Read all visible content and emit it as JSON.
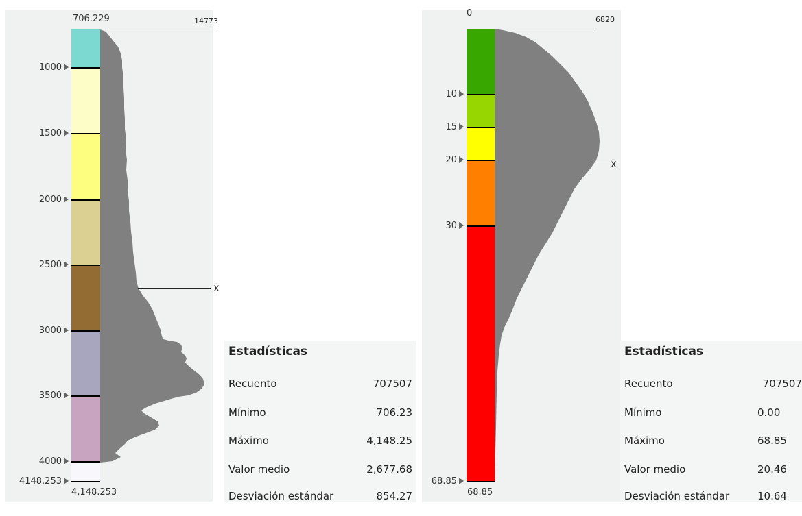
{
  "left": {
    "min_label": "706.229",
    "max_count": "14773",
    "bottom_label": "4,148.253",
    "mean_symbol": "x̄",
    "ticks": [
      "1000",
      "1500",
      "2000",
      "2500",
      "3000",
      "3500",
      "4000",
      "4148.253"
    ],
    "ramp_colors": [
      "#7bd9d2",
      "#fdfdc8",
      "#fdfd80",
      "#dccf92",
      "#936c34",
      "#a7a6be",
      "#c8a4c1",
      "#f8f8fc"
    ],
    "stats": {
      "title": "Estadísticas",
      "rows": [
        {
          "k": "Recuento",
          "v": "707507"
        },
        {
          "k": "Mínimo",
          "v": "706.23"
        },
        {
          "k": "Máximo",
          "v": "4,148.25"
        },
        {
          "k": "Valor medio",
          "v": "2,677.68"
        },
        {
          "k": "Desviación estándar",
          "v": "854.27"
        }
      ]
    }
  },
  "right": {
    "min_label": "0",
    "max_count": "6820",
    "bottom_label": "68.85",
    "mean_symbol": "x̄",
    "ticks": [
      "10",
      "15",
      "20",
      "30",
      "68.85"
    ],
    "ramp_colors": [
      "#38a800",
      "#98d600",
      "#ffff00",
      "#ff8000",
      "#ff0000"
    ],
    "stats": {
      "title": "Estadísticas",
      "rows": [
        {
          "k": "Recuento",
          "v": "707507"
        },
        {
          "k": "Mínimo",
          "v": "0.00"
        },
        {
          "k": "Máximo",
          "v": "68.85"
        },
        {
          "k": "Valor medio",
          "v": "20.46"
        },
        {
          "k": "Desviación estándar",
          "v": "10.64"
        }
      ]
    }
  },
  "colors": {
    "histogram": "#808080",
    "panel": "#f0f2f2"
  }
}
